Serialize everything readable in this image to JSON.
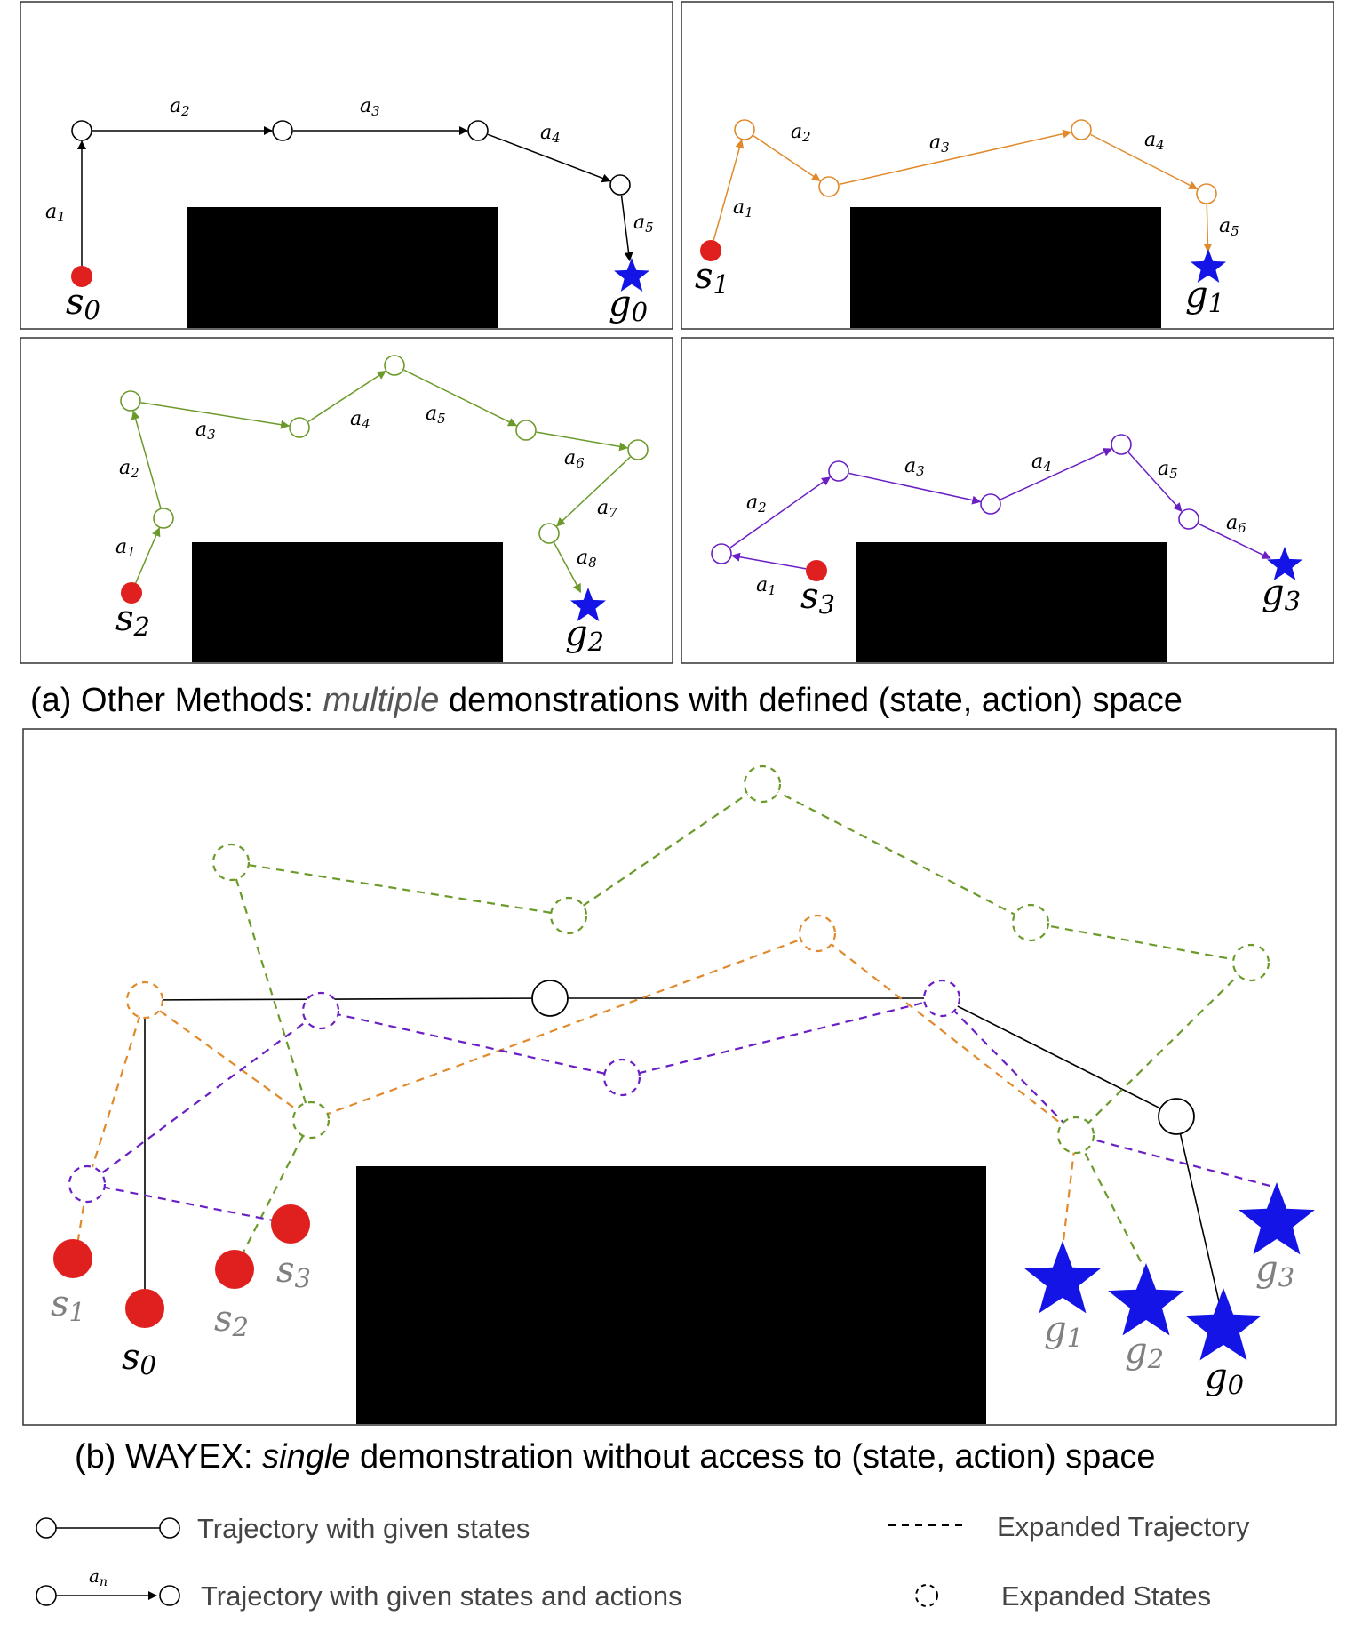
{
  "colors": {
    "agent_0": "#000000",
    "agent_1": "#e08a2c",
    "agent_2": "#6b9a2a",
    "agent_3": "#6a1fc4",
    "start": "#e01f1f",
    "goal": "#1414e6",
    "obstacle": "#000000",
    "grey_label": "#808080"
  },
  "panels": [
    {
      "name": "panel-s0-g0",
      "agent": "agent_0",
      "start_label": "s",
      "start_sub": "0",
      "goal_label": "g",
      "goal_sub": "0",
      "action_labels": [
        "a1",
        "a2",
        "a3",
        "a4",
        "a5"
      ]
    },
    {
      "name": "panel-s1-g1",
      "agent": "agent_1",
      "start_label": "s",
      "start_sub": "1",
      "goal_label": "g",
      "goal_sub": "1",
      "action_labels": [
        "a1",
        "a2",
        "a3",
        "a4",
        "a5"
      ]
    },
    {
      "name": "panel-s2-g2",
      "agent": "agent_2",
      "start_label": "s",
      "start_sub": "2",
      "goal_label": "g",
      "goal_sub": "2",
      "action_labels": [
        "a1",
        "a2",
        "a3",
        "a4",
        "a5",
        "a6",
        "a7",
        "a8"
      ]
    },
    {
      "name": "panel-s3-g3",
      "agent": "agent_3",
      "start_label": "s",
      "start_sub": "3",
      "goal_label": "g",
      "goal_sub": "3",
      "action_labels": [
        "a1",
        "a2",
        "a3",
        "a4",
        "a5",
        "a6"
      ]
    }
  ],
  "caption_a": {
    "prefix": "(a) Other Methods: ",
    "emphasis": "multiple",
    "suffix": " demonstrations with defined (state, action) space"
  },
  "caption_b": {
    "prefix": "(b) WAYEX: ",
    "emphasis": "single",
    "suffix": " demonstration without access to (state, action) space"
  },
  "combined": {
    "starts": [
      {
        "label": "s",
        "sub": "0",
        "highlight": true
      },
      {
        "label": "s",
        "sub": "1",
        "highlight": false
      },
      {
        "label": "s",
        "sub": "2",
        "highlight": false
      },
      {
        "label": "s",
        "sub": "3",
        "highlight": false
      }
    ],
    "goals": [
      {
        "label": "g",
        "sub": "0",
        "highlight": true
      },
      {
        "label": "g",
        "sub": "1",
        "highlight": false
      },
      {
        "label": "g",
        "sub": "2",
        "highlight": false
      },
      {
        "label": "g",
        "sub": "3",
        "highlight": false
      }
    ]
  },
  "legend": {
    "given_states": "Trajectory with given states",
    "given_states_actions": "Trajectory with given states and actions",
    "action_symbol": "a",
    "action_sub": "n",
    "expanded_trajectory": "Expanded Trajectory",
    "expanded_states": "Expanded States"
  }
}
